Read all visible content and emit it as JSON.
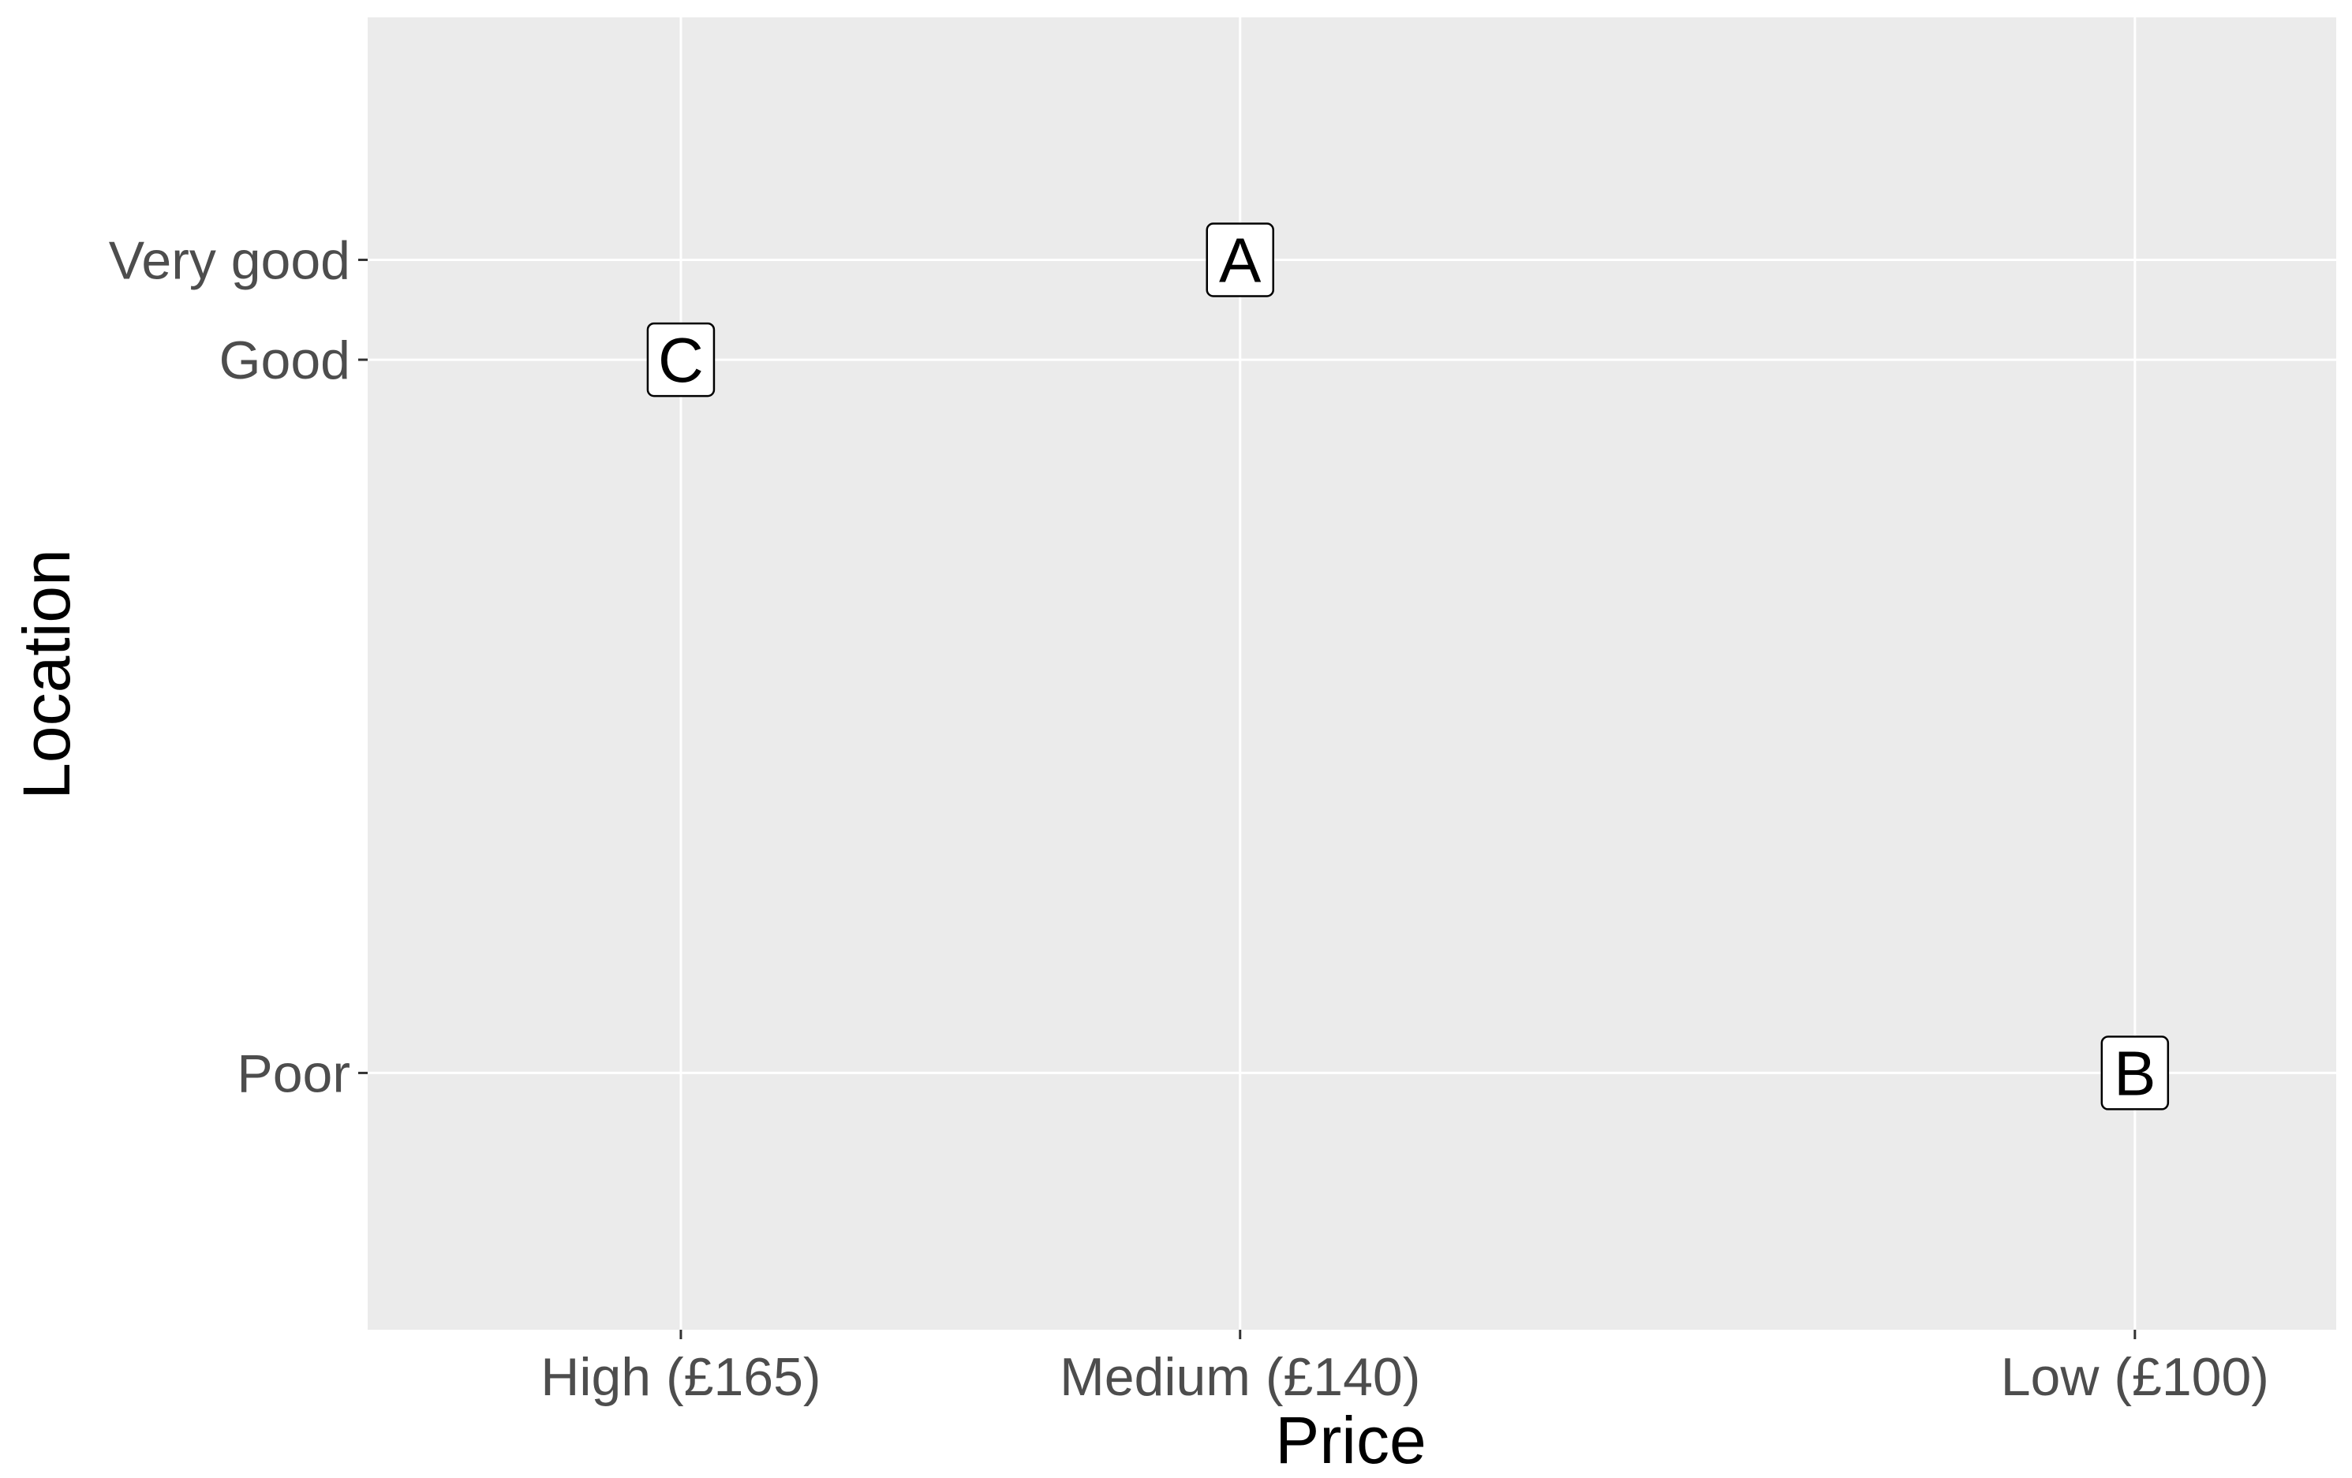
{
  "chart_data": {
    "type": "scatter",
    "title": "",
    "xlabel": "Price",
    "ylabel": "Location",
    "x_axis": {
      "type": "numeric-reversed",
      "range_price": [
        179,
        91
      ],
      "ticks": [
        {
          "value": 165,
          "label": "High (£165)"
        },
        {
          "value": 140,
          "label": "Medium (£140)"
        },
        {
          "value": 100,
          "label": "Low (£100)"
        }
      ]
    },
    "y_axis": {
      "type": "numeric",
      "range": [
        1.7,
        6.3
      ],
      "ticks": [
        {
          "value": 2.6,
          "label": "Poor"
        },
        {
          "value": 5.1,
          "label": "Good"
        },
        {
          "value": 5.45,
          "label": "Very good"
        }
      ]
    },
    "points": [
      {
        "label": "A",
        "price": 140,
        "location": 5.45
      },
      {
        "label": "C",
        "price": 165,
        "location": 5.1
      },
      {
        "label": "B",
        "price": 100,
        "location": 2.6
      }
    ],
    "grid": true,
    "legend": "none",
    "colors": {
      "panel_background": "#ebebeb",
      "grid_line": "#ffffff",
      "tick_text": "#4d4d4d",
      "tick_mark": "#333333",
      "label_fill": "#ffffff",
      "label_border": "#000000"
    }
  }
}
